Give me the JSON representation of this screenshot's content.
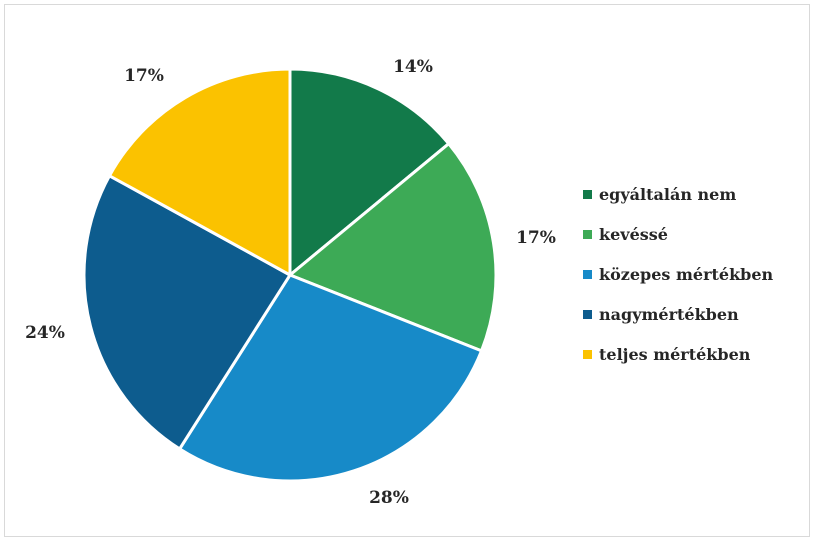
{
  "chart_data": {
    "type": "pie",
    "title": "",
    "categories": [
      "egyáltalán nem",
      "kevéssé",
      "közepes mértékben",
      "nagymértékben",
      "teljes mértékben"
    ],
    "values": [
      14,
      17,
      28,
      24,
      17
    ],
    "data_labels": [
      "14%",
      "17%",
      "28%",
      "24%",
      "17%"
    ],
    "colors": [
      "#127a4a",
      "#3daa56",
      "#178ac8",
      "#0d5c8e",
      "#fbc200"
    ],
    "start_angle": "12 o'clock",
    "direction": "clockwise",
    "legend_position": "right"
  }
}
